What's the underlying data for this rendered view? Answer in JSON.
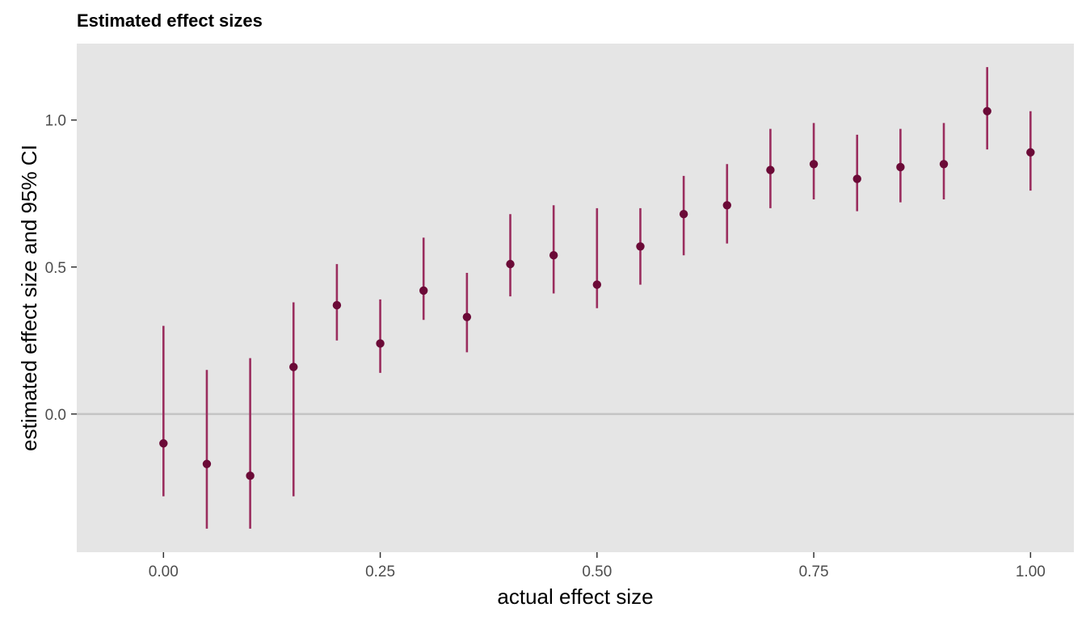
{
  "chart_data": {
    "type": "scatter",
    "title": "Estimated effect sizes",
    "xlabel": "actual effect size",
    "ylabel": "estimated effect size and 95% CI",
    "xlim": [
      -0.1,
      1.05
    ],
    "ylim": [
      -0.47,
      1.26
    ],
    "x_ticks": [
      0.0,
      0.25,
      0.5,
      0.75,
      1.0
    ],
    "x_tick_labels": [
      "0.00",
      "0.25",
      "0.50",
      "0.75",
      "1.00"
    ],
    "y_ticks": [
      0.0,
      0.5,
      1.0
    ],
    "y_tick_labels": [
      "0.0",
      "0.5",
      "1.0"
    ],
    "reference_line_y": 0,
    "grid": false,
    "legend": "none",
    "colors": {
      "panel_background": "#e5e5e5",
      "point": "#6b0a37",
      "errorbar": "#9a2d5e",
      "reference_line": "#c4c4c4"
    },
    "points": [
      {
        "x": 0.0,
        "y": -0.1,
        "lower": -0.28,
        "upper": 0.3
      },
      {
        "x": 0.05,
        "y": -0.17,
        "lower": -0.39,
        "upper": 0.15
      },
      {
        "x": 0.1,
        "y": -0.21,
        "lower": -0.39,
        "upper": 0.19
      },
      {
        "x": 0.15,
        "y": 0.16,
        "lower": -0.28,
        "upper": 0.38
      },
      {
        "x": 0.2,
        "y": 0.37,
        "lower": 0.25,
        "upper": 0.51
      },
      {
        "x": 0.25,
        "y": 0.24,
        "lower": 0.14,
        "upper": 0.39
      },
      {
        "x": 0.3,
        "y": 0.42,
        "lower": 0.32,
        "upper": 0.6
      },
      {
        "x": 0.35,
        "y": 0.33,
        "lower": 0.21,
        "upper": 0.48
      },
      {
        "x": 0.4,
        "y": 0.51,
        "lower": 0.4,
        "upper": 0.68
      },
      {
        "x": 0.45,
        "y": 0.54,
        "lower": 0.41,
        "upper": 0.71
      },
      {
        "x": 0.5,
        "y": 0.44,
        "lower": 0.36,
        "upper": 0.7
      },
      {
        "x": 0.55,
        "y": 0.57,
        "lower": 0.44,
        "upper": 0.7
      },
      {
        "x": 0.6,
        "y": 0.68,
        "lower": 0.54,
        "upper": 0.81
      },
      {
        "x": 0.65,
        "y": 0.71,
        "lower": 0.58,
        "upper": 0.85
      },
      {
        "x": 0.7,
        "y": 0.83,
        "lower": 0.7,
        "upper": 0.97
      },
      {
        "x": 0.75,
        "y": 0.85,
        "lower": 0.73,
        "upper": 0.99
      },
      {
        "x": 0.8,
        "y": 0.8,
        "lower": 0.69,
        "upper": 0.95
      },
      {
        "x": 0.85,
        "y": 0.84,
        "lower": 0.72,
        "upper": 0.97
      },
      {
        "x": 0.9,
        "y": 0.85,
        "lower": 0.73,
        "upper": 0.99
      },
      {
        "x": 0.95,
        "y": 1.03,
        "lower": 0.9,
        "upper": 1.18
      },
      {
        "x": 1.0,
        "y": 0.89,
        "lower": 0.76,
        "upper": 1.03
      }
    ]
  }
}
